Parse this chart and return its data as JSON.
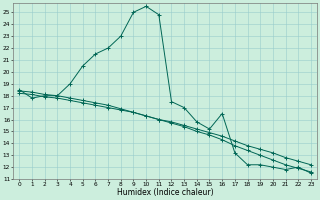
{
  "xlabel": "Humidex (Indice chaleur)",
  "bg_color": "#cceedd",
  "grid_color": "#99cccc",
  "line_color": "#006655",
  "xlim": [
    -0.5,
    23.5
  ],
  "ylim": [
    11,
    25.8
  ],
  "xtick_vals": [
    0,
    1,
    2,
    3,
    4,
    5,
    6,
    7,
    8,
    9,
    10,
    11,
    12,
    13,
    14,
    15,
    16,
    17,
    18,
    19,
    20,
    21,
    22,
    23
  ],
  "ytick_vals": [
    11,
    12,
    13,
    14,
    15,
    16,
    17,
    18,
    19,
    20,
    21,
    22,
    23,
    24,
    25
  ],
  "curve1_x": [
    0,
    1,
    2,
    3,
    4,
    5,
    6,
    7,
    8,
    9,
    10,
    11,
    12,
    13,
    14,
    15,
    16,
    17,
    18,
    19,
    20,
    21,
    22,
    23
  ],
  "curve1_y": [
    18.5,
    17.8,
    18.0,
    18.0,
    19.0,
    20.5,
    21.5,
    22.0,
    23.0,
    25.0,
    25.5,
    24.8,
    17.5,
    17.0,
    15.8,
    15.2,
    16.5,
    13.2,
    12.2,
    12.2,
    12.0,
    11.8,
    12.0,
    11.5
  ],
  "curve2_x": [
    0,
    1,
    2,
    3,
    4,
    5,
    6,
    7,
    8,
    9,
    10,
    11,
    12,
    13,
    14,
    15,
    16,
    17,
    18,
    19,
    20,
    21,
    22,
    23
  ],
  "curve2_y": [
    18.2,
    18.1,
    17.9,
    17.8,
    17.6,
    17.4,
    17.2,
    17.0,
    16.8,
    16.6,
    16.3,
    16.0,
    15.8,
    15.5,
    15.2,
    14.9,
    14.6,
    14.2,
    13.8,
    13.5,
    13.2,
    12.8,
    12.5,
    12.2
  ],
  "curve3_x": [
    0,
    1,
    2,
    3,
    4,
    5,
    6,
    7,
    8,
    9,
    10,
    11,
    12,
    13,
    14,
    15,
    16,
    17,
    18,
    19,
    20,
    21,
    22,
    23
  ],
  "curve3_y": [
    18.4,
    18.3,
    18.1,
    18.0,
    17.8,
    17.6,
    17.4,
    17.2,
    16.9,
    16.6,
    16.3,
    16.0,
    15.7,
    15.4,
    15.0,
    14.7,
    14.3,
    13.8,
    13.4,
    13.0,
    12.6,
    12.2,
    11.9,
    11.6
  ]
}
